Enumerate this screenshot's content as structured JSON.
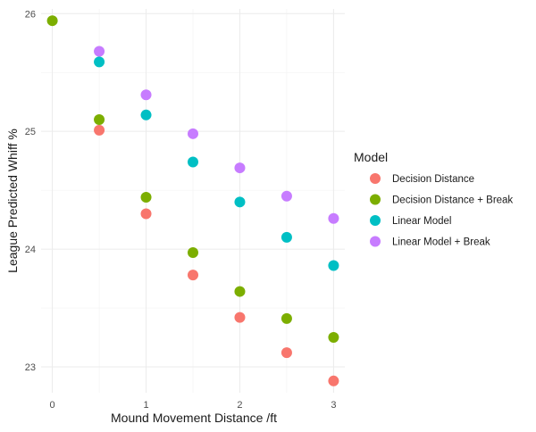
{
  "chart_data": {
    "type": "scatter",
    "xlabel": "Mound Movement Distance /ft",
    "ylabel": "League Predicted Whiff %",
    "xlim": [
      -0.12,
      3.12
    ],
    "ylim": [
      22.78,
      26.04
    ],
    "x_ticks": [
      0,
      1,
      2,
      3
    ],
    "x_minor": [
      0.5,
      1.5,
      2.5
    ],
    "y_ticks": [
      23,
      24,
      25,
      26
    ],
    "y_minor": [
      23.5,
      24.5,
      25.5
    ],
    "grid": true,
    "legend": {
      "title": "Model",
      "placement": "right"
    },
    "series": [
      {
        "name": "Decision Distance",
        "color": "#F8766D",
        "x": [
          0.5,
          1,
          1.5,
          2,
          2.5,
          3
        ],
        "y": [
          25.01,
          24.3,
          23.78,
          23.42,
          23.12,
          22.88
        ]
      },
      {
        "name": "Decision Distance + Break",
        "color": "#7CAE00",
        "x": [
          0,
          0.5,
          1,
          1.5,
          2,
          2.5,
          3
        ],
        "y": [
          25.94,
          25.1,
          24.44,
          23.97,
          23.64,
          23.41,
          23.25
        ]
      },
      {
        "name": "Linear Model",
        "color": "#00BFC4",
        "x": [
          0.5,
          1,
          1.5,
          2,
          2.5,
          3
        ],
        "y": [
          25.59,
          25.14,
          24.74,
          24.4,
          24.1,
          23.86
        ]
      },
      {
        "name": "Linear Model + Break",
        "color": "#C77CFF",
        "x": [
          0.5,
          1,
          1.5,
          2,
          2.5,
          3
        ],
        "y": [
          25.68,
          25.31,
          24.98,
          24.69,
          24.45,
          24.26
        ]
      }
    ]
  }
}
